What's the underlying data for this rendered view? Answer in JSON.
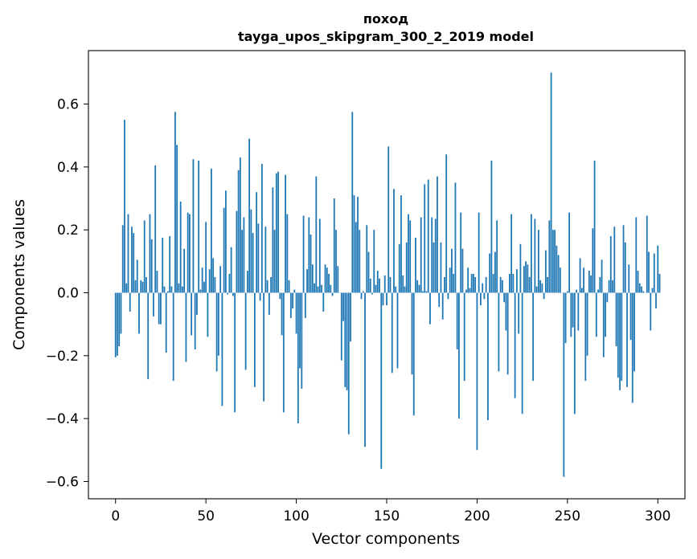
{
  "chart_data": {
    "type": "bar",
    "title": "поход",
    "subtitle": "tayga_upos_skipgram_300_2_2019 model",
    "xlabel": "Vector components",
    "ylabel": "Components values",
    "xlim": [
      -15,
      315
    ],
    "ylim": [
      -0.655,
      0.77
    ],
    "xticks": [
      0,
      50,
      100,
      150,
      200,
      250,
      300
    ],
    "yticks": [
      -0.6,
      -0.4,
      -0.2,
      0.0,
      0.2,
      0.4,
      0.6
    ],
    "x_tick_labels": [
      "0",
      "50",
      "100",
      "150",
      "200",
      "250",
      "300"
    ],
    "y_tick_labels": [
      "−0.6",
      "−0.4",
      "−0.2",
      "0.0",
      "0.2",
      "0.4",
      "0.6"
    ],
    "bar_color": "#1f77b4",
    "grid": false,
    "values": [
      -0.205,
      -0.2,
      -0.17,
      -0.13,
      0.215,
      0.55,
      0.03,
      0.25,
      -0.06,
      0.21,
      0.19,
      0.04,
      0.105,
      -0.13,
      0.04,
      0.035,
      0.23,
      0.05,
      -0.275,
      0.25,
      0.17,
      -0.075,
      0.405,
      0.07,
      -0.1,
      -0.1,
      0.175,
      0.02,
      -0.19,
      0.005,
      0.18,
      0.02,
      -0.28,
      0.575,
      0.47,
      0.03,
      0.29,
      0.02,
      0.14,
      -0.22,
      0.255,
      0.25,
      -0.135,
      0.425,
      -0.18,
      -0.07,
      0.42,
      0.01,
      0.08,
      0.035,
      0.225,
      -0.14,
      0.075,
      0.395,
      0.11,
      0.05,
      -0.25,
      -0.2,
      0.085,
      -0.36,
      0.27,
      0.325,
      -0.005,
      0.06,
      0.145,
      -0.01,
      -0.38,
      0.26,
      0.39,
      0.43,
      0.2,
      0.24,
      -0.245,
      0.07,
      0.49,
      0.265,
      0.19,
      -0.3,
      0.32,
      0.22,
      -0.025,
      0.41,
      -0.345,
      0.21,
      0.04,
      -0.07,
      0.05,
      0.335,
      0.2,
      0.38,
      0.385,
      -0.02,
      -0.135,
      -0.38,
      0.375,
      0.25,
      0.04,
      -0.08,
      -0.05,
      0.01,
      -0.13,
      -0.415,
      -0.24,
      -0.305,
      0.245,
      -0.08,
      0.075,
      0.24,
      0.185,
      0.09,
      0.03,
      0.37,
      0.02,
      0.235,
      0.025,
      -0.06,
      0.09,
      0.08,
      0.06,
      0.025,
      -0.01,
      0.3,
      0.2,
      0.085,
      0.0,
      -0.215,
      -0.09,
      -0.3,
      -0.31,
      -0.45,
      -0.155,
      0.575,
      0.31,
      0.225,
      0.305,
      0.2,
      -0.02,
      0.005,
      -0.49,
      0.215,
      0.13,
      0.045,
      -0.005,
      0.2,
      0.025,
      0.07,
      0.045,
      -0.56,
      -0.04,
      0.055,
      -0.04,
      0.465,
      0.05,
      -0.255,
      0.33,
      0.02,
      -0.24,
      0.155,
      0.31,
      0.055,
      0.02,
      0.16,
      0.25,
      0.23,
      -0.26,
      -0.39,
      0.175,
      0.04,
      0.025,
      0.24,
      0.005,
      0.345,
      0.005,
      0.36,
      -0.1,
      0.24,
      0.16,
      0.235,
      0.37,
      -0.045,
      0.16,
      -0.085,
      0.05,
      0.44,
      -0.02,
      0.08,
      0.14,
      0.06,
      0.35,
      -0.18,
      -0.4,
      0.255,
      0.14,
      -0.28,
      0.01,
      0.08,
      0.015,
      0.06,
      0.06,
      0.05,
      -0.5,
      0.255,
      -0.04,
      0.03,
      -0.02,
      0.05,
      -0.405,
      0.125,
      0.42,
      0.06,
      0.13,
      0.23,
      -0.25,
      0.05,
      0.04,
      -0.03,
      -0.12,
      -0.26,
      0.06,
      0.25,
      0.06,
      -0.335,
      0.075,
      -0.13,
      0.155,
      -0.385,
      0.085,
      0.1,
      0.09,
      0.05,
      0.25,
      -0.28,
      0.235,
      0.02,
      0.2,
      0.04,
      0.03,
      -0.02,
      0.135,
      0.05,
      0.23,
      0.7,
      0.2,
      0.2,
      0.15,
      0.12,
      0.08,
      0.0,
      -0.585,
      -0.16,
      0.005,
      0.255,
      -0.14,
      -0.11,
      -0.385,
      0.01,
      -0.12,
      0.11,
      0.015,
      0.08,
      -0.28,
      -0.2,
      0.07,
      0.055,
      0.205,
      0.42,
      -0.14,
      0.01,
      0.05,
      0.105,
      -0.205,
      -0.14,
      -0.03,
      0.04,
      0.18,
      0.04,
      0.21,
      -0.17,
      -0.27,
      -0.31,
      -0.28,
      0.215,
      0.16,
      -0.3,
      0.09,
      -0.15,
      -0.35,
      -0.25,
      0.24,
      0.07,
      0.03,
      0.02,
      0.005,
      0.0,
      0.245,
      0.13,
      -0.12,
      0.015,
      0.125,
      -0.05,
      0.15,
      0.06
    ]
  }
}
